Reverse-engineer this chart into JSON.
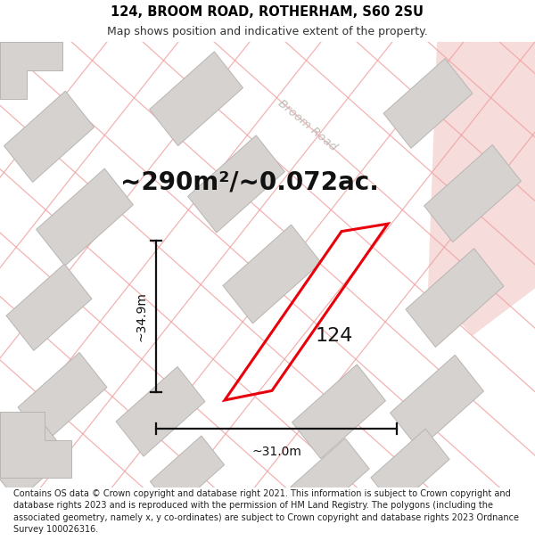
{
  "title": "124, BROOM ROAD, ROTHERHAM, S60 2SU",
  "subtitle": "Map shows position and indicative extent of the property.",
  "footer": "Contains OS data © Crown copyright and database right 2021. This information is subject to Crown copyright and database rights 2023 and is reproduced with the permission of HM Land Registry. The polygons (including the associated geometry, namely x, y co-ordinates) are subject to Crown copyright and database rights 2023 Ordnance Survey 100026316.",
  "area_label": "~290m²/~0.072ac.",
  "road_label": "Broom Road",
  "number_label": "124",
  "width_label": "~31.0m",
  "height_label": "~34.9m",
  "map_bg": "#f2f0ee",
  "plot_color_red": "#e8000a",
  "building_fill": "#d5d2cf",
  "building_edge": "#b8b5b2",
  "road_lines_color": "#f0a0a0",
  "pink_area_color": "#f5d8d5",
  "title_fontsize": 10.5,
  "subtitle_fontsize": 9,
  "footer_fontsize": 7,
  "area_fontsize": 20,
  "label_fontsize": 16,
  "dim_fontsize": 10,
  "road_label_color": "#c0bcb8",
  "dim_line_color": "#111111",
  "title_color": "#000000",
  "subtitle_color": "#333333",
  "footer_color": "#222222"
}
